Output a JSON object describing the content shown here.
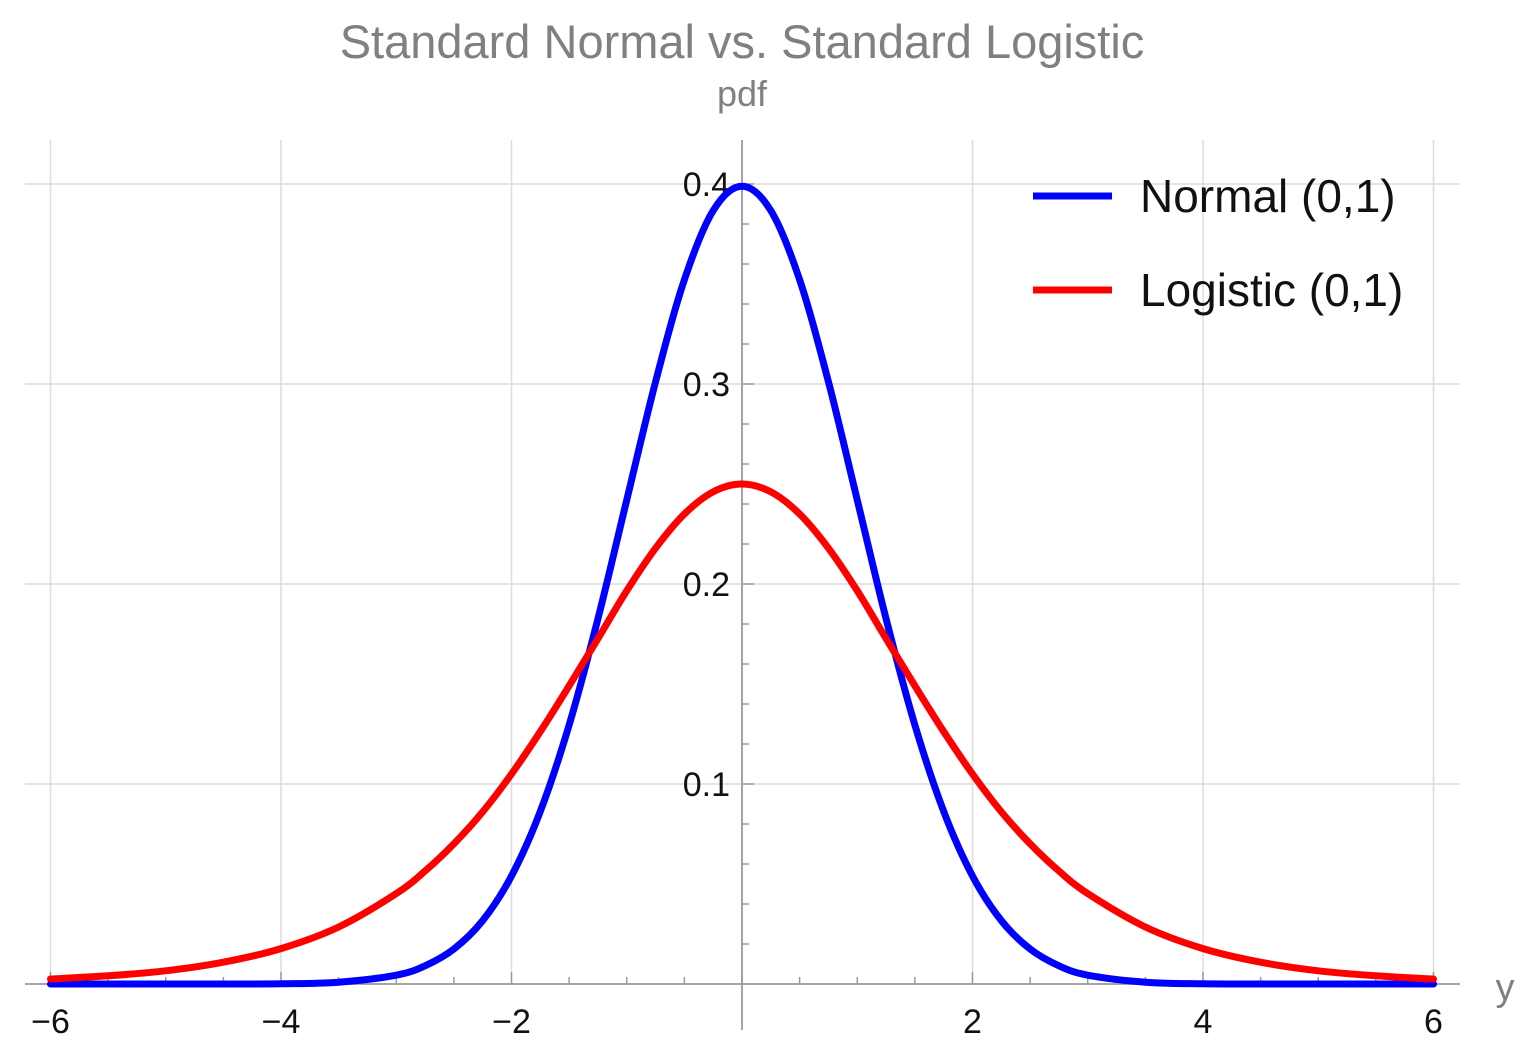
{
  "chart_data": {
    "type": "line",
    "title": "Standard Normal vs. Standard Logistic",
    "ylabel": "pdf",
    "xlabel": "y",
    "xlim": [
      -6,
      6
    ],
    "ylim": [
      0,
      0.42
    ],
    "grid": true,
    "legend_position": "top-right",
    "x_ticks": [
      -6,
      -4,
      -2,
      2,
      4,
      6
    ],
    "x_tick_labels": [
      "−6",
      "−4",
      "−2",
      "2",
      "4",
      "6"
    ],
    "y_ticks": [
      0.1,
      0.2,
      0.3,
      0.4
    ],
    "y_tick_labels": [
      "0.1",
      "0.2",
      "0.3",
      "0.4"
    ],
    "series": [
      {
        "name": "Normal (0,1)",
        "color": "#0000ff",
        "x": [
          -6,
          -5.5,
          -5,
          -4.5,
          -4,
          -3.5,
          -3,
          -2.75,
          -2.5,
          -2.25,
          -2,
          -1.75,
          -1.5,
          -1.25,
          -1,
          -0.75,
          -0.5,
          -0.25,
          0,
          0.25,
          0.5,
          0.75,
          1,
          1.25,
          1.5,
          1.75,
          2,
          2.25,
          2.5,
          2.75,
          3,
          3.5,
          4,
          4.5,
          5,
          5.5,
          6
        ],
        "y": [
          0.0,
          0.0,
          0.0,
          0.0,
          0.0001,
          0.0009,
          0.0044,
          0.0091,
          0.0175,
          0.0317,
          0.054,
          0.0863,
          0.1295,
          0.1826,
          0.242,
          0.3011,
          0.3521,
          0.3867,
          0.3989,
          0.3867,
          0.3521,
          0.3011,
          0.242,
          0.1826,
          0.1295,
          0.0863,
          0.054,
          0.0317,
          0.0175,
          0.0091,
          0.0044,
          0.0009,
          0.0001,
          0.0,
          0.0,
          0.0,
          0.0
        ]
      },
      {
        "name": "Logistic (0,1)",
        "color": "#ff0000",
        "x": [
          -6,
          -5.5,
          -5,
          -4.5,
          -4,
          -3.5,
          -3,
          -2.75,
          -2.5,
          -2.25,
          -2,
          -1.75,
          -1.5,
          -1.25,
          -1,
          -0.75,
          -0.5,
          -0.25,
          0,
          0.25,
          0.5,
          0.75,
          1,
          1.25,
          1.5,
          1.75,
          2,
          2.25,
          2.5,
          2.75,
          3,
          3.5,
          4,
          4.5,
          5,
          5.5,
          6
        ],
        "y": [
          0.0025,
          0.0041,
          0.0066,
          0.0109,
          0.0177,
          0.0285,
          0.0452,
          0.0565,
          0.0701,
          0.0861,
          0.105,
          0.1262,
          0.1491,
          0.1727,
          0.1966,
          0.2179,
          0.235,
          0.2461,
          0.25,
          0.2461,
          0.235,
          0.2179,
          0.1966,
          0.1727,
          0.1491,
          0.1262,
          0.105,
          0.0861,
          0.0701,
          0.0565,
          0.0452,
          0.0285,
          0.0177,
          0.0109,
          0.0066,
          0.0041,
          0.0025
        ]
      }
    ]
  }
}
